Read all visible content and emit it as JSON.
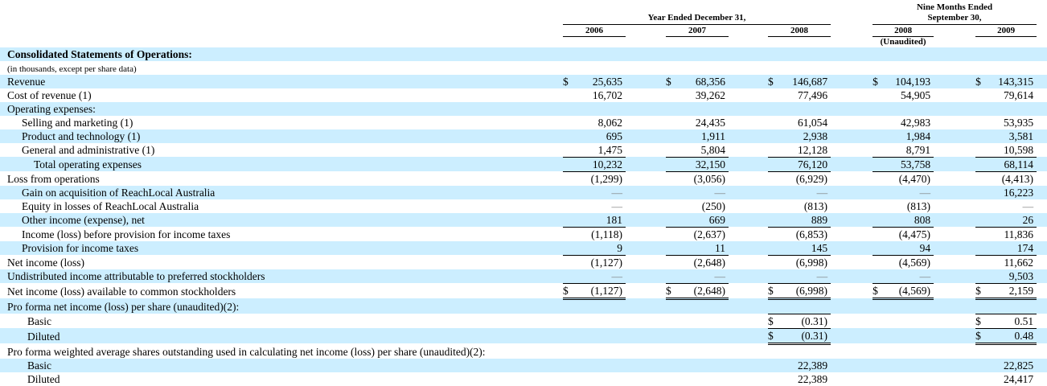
{
  "colors": {
    "row_shade": "#cceeff",
    "dash_color": "#808080",
    "rule_color": "#000000"
  },
  "misc": {
    "dash": "—"
  },
  "header": {
    "year_ended_label": "Year Ended December 31,",
    "nine_months_line1": "Nine Months Ended",
    "nine_months_line2": "September 30,",
    "years": [
      "2006",
      "2007",
      "2008",
      "2008",
      "2009"
    ],
    "unaudited_label": "(Unaudited)"
  },
  "rows": [
    {
      "label": "Consolidated Statements of Operations:",
      "bold": true,
      "shaded": true,
      "indent": 0,
      "cells": [
        null,
        null,
        null,
        null,
        null
      ]
    },
    {
      "label": "(in thousands, except per share data)",
      "small": true,
      "shaded": false,
      "indent": 0,
      "cells": [
        null,
        null,
        null,
        null,
        null
      ]
    },
    {
      "label": "Revenue",
      "shaded": true,
      "indent": 0,
      "cells": [
        {
          "d": "$",
          "v": "25,635"
        },
        {
          "d": "$",
          "v": "68,356"
        },
        {
          "d": "$",
          "v": "146,687"
        },
        {
          "d": "$",
          "v": "104,193"
        },
        {
          "d": "$",
          "v": "143,315"
        }
      ]
    },
    {
      "label": "Cost of revenue (1)",
      "shaded": false,
      "indent": 0,
      "cells": [
        {
          "v": "16,702"
        },
        {
          "v": "39,262"
        },
        {
          "v": "77,496"
        },
        {
          "v": "54,905"
        },
        {
          "v": "79,614"
        }
      ]
    },
    {
      "label": "Operating expenses:",
      "shaded": true,
      "indent": 0,
      "cells": [
        null,
        null,
        null,
        null,
        null
      ]
    },
    {
      "label": "Selling and marketing (1)",
      "shaded": false,
      "indent": 1,
      "cells": [
        {
          "v": "8,062"
        },
        {
          "v": "24,435"
        },
        {
          "v": "61,054"
        },
        {
          "v": "42,983"
        },
        {
          "v": "53,935"
        }
      ]
    },
    {
      "label": "Product and technology (1)",
      "shaded": true,
      "indent": 1,
      "cells": [
        {
          "v": "695"
        },
        {
          "v": "1,911"
        },
        {
          "v": "2,938"
        },
        {
          "v": "1,984"
        },
        {
          "v": "3,581"
        }
      ]
    },
    {
      "label": "General and administrative (1)",
      "shaded": false,
      "indent": 1,
      "rule": "single",
      "cells": [
        {
          "v": "1,475"
        },
        {
          "v": "5,804"
        },
        {
          "v": "12,128"
        },
        {
          "v": "8,791"
        },
        {
          "v": "10,598"
        }
      ]
    },
    {
      "label": "Total operating expenses",
      "shaded": true,
      "indent": 2,
      "rule": "single",
      "cells": [
        {
          "v": "10,232"
        },
        {
          "v": "32,150"
        },
        {
          "v": "76,120"
        },
        {
          "v": "53,758"
        },
        {
          "v": "68,114"
        }
      ]
    },
    {
      "label": "Loss from operations",
      "shaded": false,
      "indent": 0,
      "cells": [
        {
          "v": "(1,299)"
        },
        {
          "v": "(3,056)"
        },
        {
          "v": "(6,929)"
        },
        {
          "v": "(4,470)"
        },
        {
          "v": "(4,413)"
        }
      ]
    },
    {
      "label": "Gain on acquisition of ReachLocal Australia",
      "shaded": true,
      "indent": 1,
      "cells": [
        {
          "v": "—"
        },
        {
          "v": "—"
        },
        {
          "v": "—"
        },
        {
          "v": "—"
        },
        {
          "v": "16,223"
        }
      ]
    },
    {
      "label": "Equity in losses of ReachLocal Australia",
      "shaded": false,
      "indent": 1,
      "cells": [
        {
          "v": "—"
        },
        {
          "v": "(250)"
        },
        {
          "v": "(813)"
        },
        {
          "v": "(813)"
        },
        {
          "v": "—"
        }
      ]
    },
    {
      "label": "Other income (expense), net",
      "shaded": true,
      "indent": 1,
      "rule": "single",
      "cells": [
        {
          "v": "181"
        },
        {
          "v": "669"
        },
        {
          "v": "889"
        },
        {
          "v": "808"
        },
        {
          "v": "26"
        }
      ]
    },
    {
      "label": "Income (loss) before provision for income taxes",
      "shaded": false,
      "indent": 1,
      "cells": [
        {
          "v": "(1,118)"
        },
        {
          "v": "(2,637)"
        },
        {
          "v": "(6,853)"
        },
        {
          "v": "(4,475)"
        },
        {
          "v": "11,836"
        }
      ]
    },
    {
      "label": "Provision for income taxes",
      "shaded": true,
      "indent": 1,
      "rule": "single",
      "cells": [
        {
          "v": "9"
        },
        {
          "v": "11"
        },
        {
          "v": "145"
        },
        {
          "v": "94"
        },
        {
          "v": "174"
        }
      ]
    },
    {
      "label": "Net income (loss)",
      "shaded": false,
      "indent": 0,
      "cells": [
        {
          "v": "(1,127)"
        },
        {
          "v": "(2,648)"
        },
        {
          "v": "(6,998)"
        },
        {
          "v": "(4,569)"
        },
        {
          "v": "11,662"
        }
      ]
    },
    {
      "label": "Undistributed income attributable to preferred stockholders",
      "shaded": true,
      "indent": 0,
      "rule": "single",
      "cells": [
        {
          "v": "—"
        },
        {
          "v": "—"
        },
        {
          "v": "—"
        },
        {
          "v": "—"
        },
        {
          "v": "9,503"
        }
      ]
    },
    {
      "label": "Net income (loss) available to common stockholders",
      "shaded": false,
      "indent": 0,
      "rule": "double",
      "cells": [
        {
          "d": "$",
          "v": "(1,127)"
        },
        {
          "d": "$",
          "v": "(2,648)"
        },
        {
          "d": "$",
          "v": "(6,998)"
        },
        {
          "d": "$",
          "v": "(4,569)"
        },
        {
          "d": "$",
          "v": "2,159"
        }
      ]
    },
    {
      "label": "Pro forma net income (loss) per share (unaudited)(2):",
      "shaded": true,
      "indent": 0,
      "cells": [
        null,
        null,
        null,
        null,
        null
      ]
    },
    {
      "label": "Basic",
      "shaded": false,
      "indent": 3,
      "rule": "single",
      "rule_top": "single",
      "cells": [
        null,
        null,
        {
          "d": "$",
          "v": "(0.31)"
        },
        null,
        {
          "d": "$",
          "v": "0.51"
        }
      ]
    },
    {
      "label": "Diluted",
      "shaded": true,
      "indent": 3,
      "rule": "double",
      "cells": [
        null,
        null,
        {
          "d": "$",
          "v": "(0.31)"
        },
        null,
        {
          "d": "$",
          "v": "0.48"
        }
      ]
    },
    {
      "label": "Pro forma weighted average shares outstanding used in calculating net income (loss) per share (unaudited)(2):",
      "shaded": false,
      "indent": 0,
      "cells": [
        null,
        null,
        null,
        null,
        null
      ]
    },
    {
      "label": "Basic",
      "shaded": true,
      "indent": 3,
      "cells": [
        null,
        null,
        {
          "v": "22,389"
        },
        null,
        {
          "v": "22,825"
        }
      ]
    },
    {
      "label": "Diluted",
      "shaded": false,
      "indent": 3,
      "cells": [
        null,
        null,
        {
          "v": "22,389"
        },
        null,
        {
          "v": "24,417"
        }
      ]
    }
  ]
}
